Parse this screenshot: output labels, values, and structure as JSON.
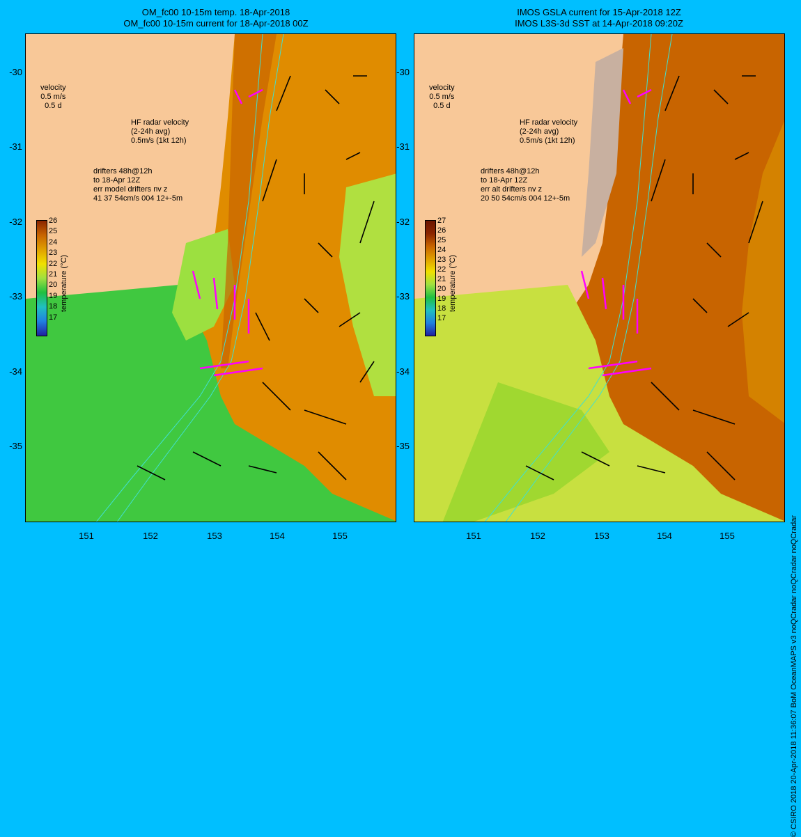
{
  "left": {
    "title_line1": "OM_fc00 10-15m temp. 18-Apr-2018",
    "title_line2": "OM_fc00 10-15m current for 18-Apr-2018 00Z",
    "velocity_label": "velocity",
    "velocity_scale1": "0.5 m/s",
    "velocity_scale2": "0.5 d",
    "hf_label1": "HF radar velocity",
    "hf_label2": "(2-24h avg)",
    "hf_label3": "0.5m/s (1kt 12h)",
    "drifters1": "drifters 48h@12h",
    "drifters2": "to 18-Apr 12Z",
    "drifters3": "err model drifters nv z",
    "drifters4": "41 37 54cm/s 004 12+-5m",
    "cbar_ticks": [
      "26",
      "25",
      "24",
      "23",
      "22",
      "21",
      "20",
      "19",
      "18",
      "17"
    ]
  },
  "right": {
    "title_line1": "IMOS GSLA current for 15-Apr-2018 12Z",
    "title_line2": "IMOS L3S-3d SST at 14-Apr-2018 09:20Z",
    "velocity_label": "velocity",
    "velocity_scale1": "0.5 m/s",
    "velocity_scale2": "0.5 d",
    "hf_label1": "HF radar velocity",
    "hf_label2": "(2-24h avg)",
    "hf_label3": "0.5m/s (1kt 12h)",
    "drifters1": "drifters 48h@12h",
    "drifters2": "to 18-Apr 12Z",
    "drifters3": "err alt drifters nv z",
    "drifters4": "20 50 54cm/s 004 12+-5m",
    "cbar_ticks": [
      "27",
      "26",
      "25",
      "24",
      "23",
      "22",
      "21",
      "20",
      "19",
      "18",
      "17"
    ]
  },
  "cbar_label": "temperature (°C)",
  "y_ticks": [
    "-30",
    "-31",
    "-32",
    "-33",
    "-34",
    "-35"
  ],
  "x_ticks": [
    "151",
    "152",
    "153",
    "154",
    "155"
  ],
  "credit": "© CSIRO 2018   20-Apr-2018 11:36:07 BoM OceanMAPS v3 noQCradar noQCradar noQCradar",
  "colors": {
    "background": "#00bfff",
    "land": "#f8c898",
    "warm_water": "#e08c00",
    "cool_water": "#40c840",
    "velocity_arrow": "#000000",
    "hf_radar_arrow": "#ff00ff",
    "isobath": "#40e0d0"
  }
}
